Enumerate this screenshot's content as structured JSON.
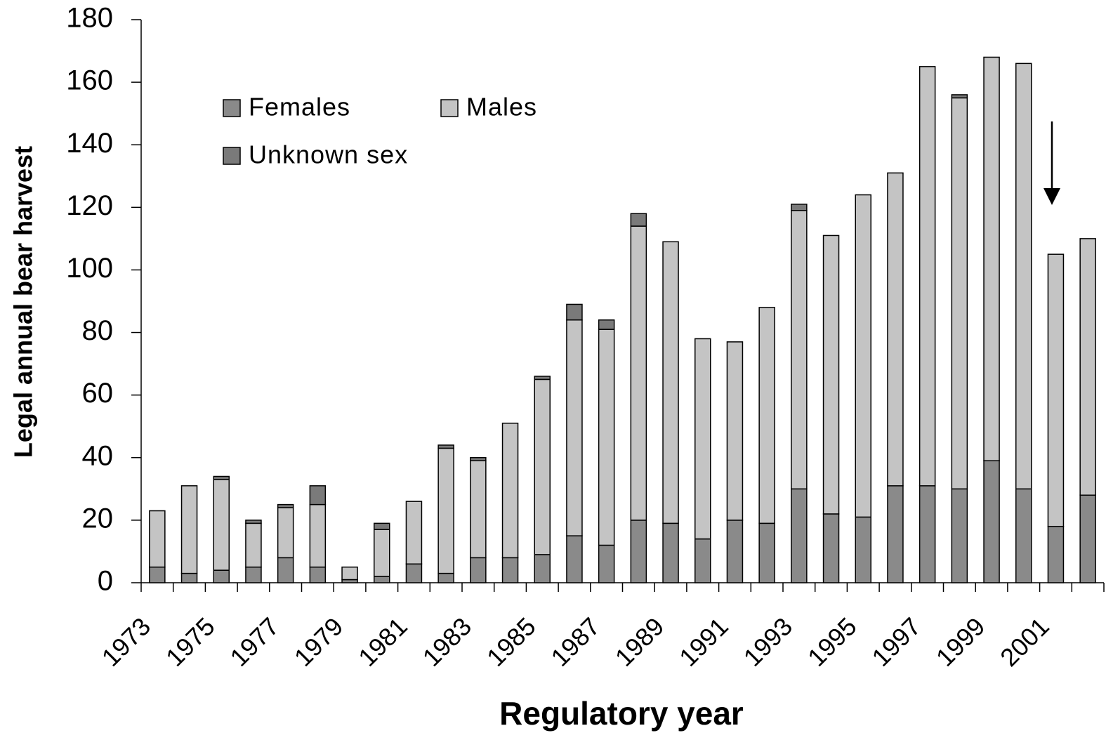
{
  "chart_data": {
    "type": "stacked_bar",
    "x_label": "Regulatory year",
    "y_label": "Legal annual bear harvest",
    "categories": [
      "1973",
      null,
      "1975",
      null,
      "1977",
      null,
      "1979",
      null,
      "1981",
      null,
      "1983",
      null,
      "1985",
      null,
      "1987",
      null,
      "1989",
      null,
      "1991",
      null,
      "1993",
      null,
      "1995",
      null,
      "1997",
      null,
      "1999",
      null,
      "2001",
      null
    ],
    "series": [
      {
        "name": "Females",
        "color": "#8a8a8a",
        "values": [
          5,
          3,
          4,
          5,
          8,
          5,
          1,
          2,
          6,
          3,
          8,
          8,
          9,
          15,
          12,
          20,
          19,
          14,
          20,
          19,
          30,
          22,
          21,
          31,
          31,
          30,
          39,
          30,
          18,
          28
        ]
      },
      {
        "name": "Males",
        "color": "#c4c4c4",
        "values": [
          18,
          28,
          29,
          14,
          16,
          20,
          4,
          15,
          20,
          40,
          31,
          43,
          56,
          69,
          69,
          94,
          90,
          64,
          57,
          69,
          89,
          89,
          103,
          100,
          134,
          125,
          129,
          136,
          87,
          82
        ]
      },
      {
        "name": "Unknown sex",
        "color": "#7a7a7a",
        "values": [
          0,
          0,
          1,
          1,
          1,
          6,
          0,
          2,
          0,
          1,
          1,
          0,
          1,
          5,
          3,
          4,
          0,
          0,
          0,
          0,
          2,
          0,
          0,
          0,
          0,
          1,
          0,
          0,
          0,
          0
        ]
      }
    ],
    "ylim": [
      0,
      180
    ],
    "yticks": [
      0,
      20,
      40,
      60,
      80,
      100,
      120,
      140,
      160,
      180
    ],
    "grid": false
  }
}
